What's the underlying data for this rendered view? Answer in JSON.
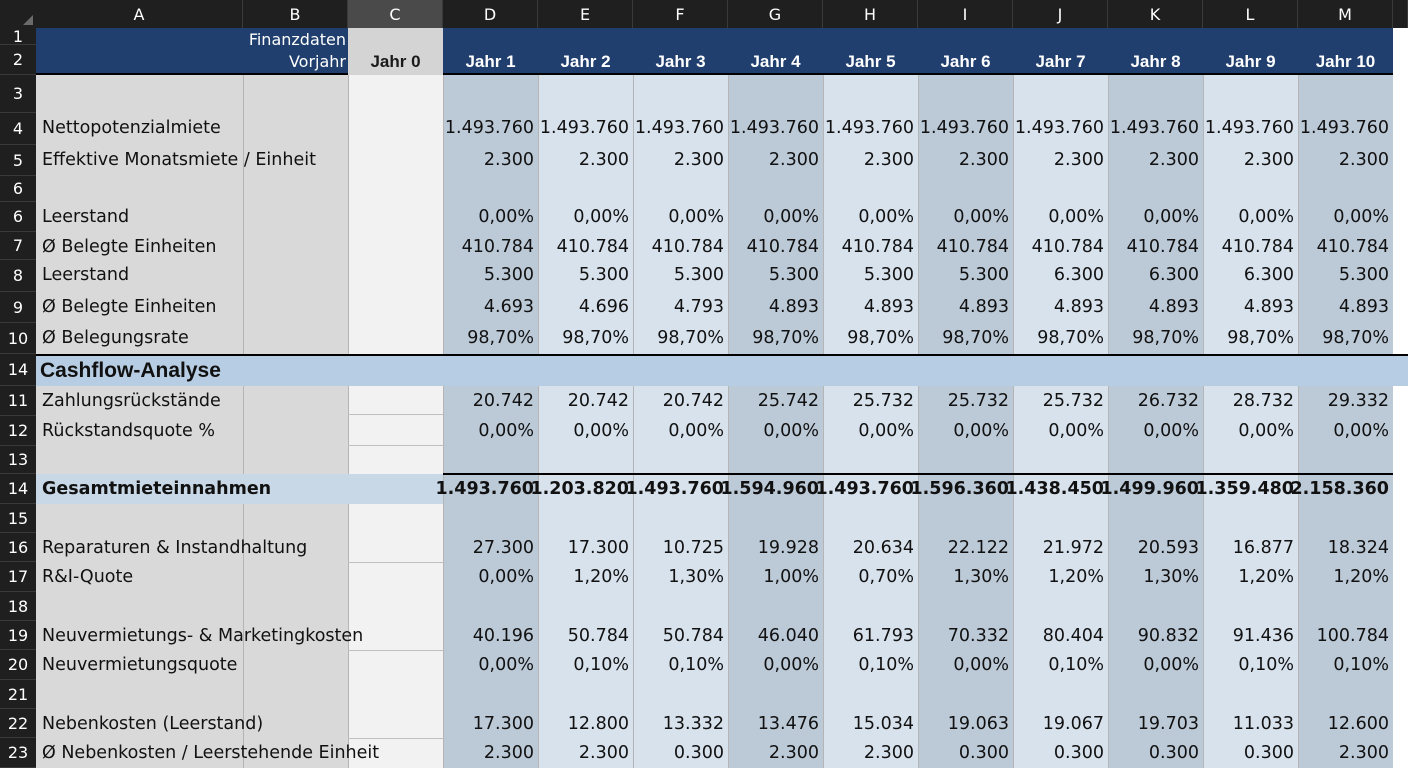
{
  "columns": [
    "A",
    "B",
    "C",
    "D",
    "E",
    "F",
    "G",
    "H",
    "I",
    "J",
    "K",
    "L",
    "M"
  ],
  "header": {
    "finanz_line1": "Finanzdaten",
    "finanz_line2": "Vorjahr",
    "years": [
      "Jahr 0",
      "Jahr 1",
      "Jahr 2",
      "Jahr 3",
      "Jahr 4",
      "Jahr 5",
      "Jahr 6",
      "Jahr 7",
      "Jahr 8",
      "Jahr 9",
      "Jahr 10"
    ]
  },
  "row_numbers": [
    "1",
    "2",
    "3",
    "4",
    "5",
    "6",
    "6",
    "7",
    "8",
    "9",
    "10",
    "14",
    "11",
    "12",
    "13",
    "14",
    "15",
    "16",
    "17",
    "18",
    "19",
    "20",
    "21",
    "22",
    "23"
  ],
  "section": {
    "cashflow": "Cashflow-Analyse"
  },
  "rows": [
    {
      "label": "Nettopotenzialmiete",
      "values": [
        "1.493.760",
        "1.493.760",
        "1.493.760",
        "1.493.760",
        "1.493.760",
        "1.493.760",
        "1.493.760",
        "1.493.760",
        "1.493.760",
        "1.493.760"
      ]
    },
    {
      "label": "Effektive Monatsmiete / Einheit",
      "values": [
        "2.300",
        "2.300",
        "2.300",
        "2.300",
        "2.300",
        "2.300",
        "2.300",
        "2.300",
        "2.300",
        "2.300"
      ]
    },
    {
      "label": "Leerstand",
      "values": [
        "0,00%",
        "0,00%",
        "0,00%",
        "0,00%",
        "0,00%",
        "0,00%",
        "0,00%",
        "0,00%",
        "0,00%",
        "0,00%"
      ]
    },
    {
      "label": "Ø Belegte Einheiten",
      "values": [
        "410.784",
        "410.784",
        "410.784",
        "410.784",
        "410.784",
        "410.784",
        "410.784",
        "410.784",
        "410.784",
        "410.784"
      ]
    },
    {
      "label": "Leerstand",
      "values": [
        "5.300",
        "5.300",
        "5.300",
        "5.300",
        "5.300",
        "5.300",
        "6.300",
        "6.300",
        "6.300",
        "5.300"
      ]
    },
    {
      "label": "Ø Belegte Einheiten",
      "values": [
        "4.693",
        "4.696",
        "4.793",
        "4.893",
        "4.893",
        "4.893",
        "4.893",
        "4.893",
        "4.893",
        "4.893"
      ]
    },
    {
      "label": "Ø Belegungsrate",
      "values": [
        "98,70%",
        "98,70%",
        "98,70%",
        "98,70%",
        "98,70%",
        "98,70%",
        "98,70%",
        "98,70%",
        "98,70%",
        "98,70%"
      ]
    },
    {
      "label": "Zahlungsrückstände",
      "values": [
        "20.742",
        "20.742",
        "20.742",
        "25.742",
        "25.732",
        "25.732",
        "25.732",
        "26.732",
        "28.732",
        "29.332"
      ]
    },
    {
      "label": "Rückstandsquote %",
      "values": [
        "0,00%",
        "0,00%",
        "0,00%",
        "0,00%",
        "0,00%",
        "0,00%",
        "0,00%",
        "0,00%",
        "0,00%",
        "0,00%"
      ]
    },
    {
      "label": "Gesamtmieteinnahmen",
      "values": [
        "1.493.760",
        "1.203.820",
        "1.493.760",
        "1.594.960",
        "1.493.760",
        "1.596.360",
        "1.438.450",
        "1.499.960",
        "1.359.480",
        "2.158.360"
      ]
    },
    {
      "label": "Reparaturen & Instandhaltung",
      "values": [
        "27.300",
        "17.300",
        "10.725",
        "19.928",
        "20.634",
        "22.122",
        "21.972",
        "20.593",
        "16.877",
        "18.324"
      ]
    },
    {
      "label": "R&I-Quote",
      "values": [
        "0,00%",
        "1,20%",
        "1,30%",
        "1,00%",
        "0,70%",
        "1,30%",
        "1,20%",
        "1,30%",
        "1,20%",
        "1,20%"
      ]
    },
    {
      "label": "Neuvermietungs- & Marketingkosten",
      "values": [
        "40.196",
        "50.784",
        "50.784",
        "46.040",
        "61.793",
        "70.332",
        "80.404",
        "90.832",
        "91.436",
        "100.784"
      ]
    },
    {
      "label": "Neuvermietungsquote",
      "values": [
        "0,00%",
        "0,10%",
        "0,10%",
        "0,00%",
        "0,10%",
        "0,00%",
        "0,10%",
        "0,00%",
        "0,10%",
        "0,10%"
      ]
    },
    {
      "label": "Nebenkosten (Leerstand)",
      "values": [
        "17.300",
        "12.800",
        "13.332",
        "13.476",
        "15.034",
        "19.063",
        "19.067",
        "19.703",
        "11.033",
        "12.600"
      ]
    },
    {
      "label": "Ø Nebenkosten / Leerstehende Einheit",
      "values": [
        "2.300",
        "2.300",
        "0.300",
        "2.300",
        "2.300",
        "0.300",
        "0.300",
        "0.300",
        "0.300",
        "2.300"
      ]
    }
  ]
}
